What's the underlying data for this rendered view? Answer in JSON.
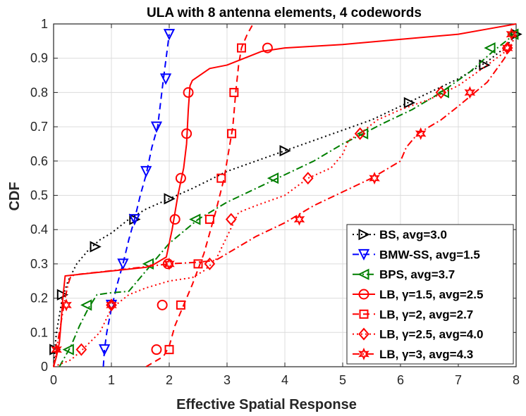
{
  "chart_data": {
    "type": "line",
    "title": "ULA with 8 antenna elements, 4 codewords",
    "xlabel": "Effective Spatial Response",
    "ylabel": "CDF",
    "xlim": [
      0,
      8
    ],
    "ylim": [
      0,
      1
    ],
    "xticks": [
      0,
      1,
      2,
      3,
      4,
      5,
      6,
      7,
      8
    ],
    "xtick_labels": [
      "0",
      "1",
      "2",
      "3",
      "4",
      "5",
      "6",
      "7",
      "8"
    ],
    "yticks": [
      0,
      0.1,
      0.2,
      0.3,
      0.4,
      0.5,
      0.6,
      0.7,
      0.8,
      0.9,
      1
    ],
    "ytick_labels": [
      "0",
      "0.1",
      "0.2",
      "0.3",
      "0.4",
      "0.5",
      "0.6",
      "0.7",
      "0.8",
      "0.9",
      "1"
    ],
    "grid": true,
    "legend_position": "bottom-right",
    "series": [
      {
        "name": "BS, avg=3.0",
        "color": "#000000",
        "dash": "dotted",
        "marker": "triangle-right",
        "x": [
          0,
          0.02,
          0.05,
          0.1,
          0.15,
          0.25,
          0.4,
          0.6,
          0.8,
          1.0,
          1.3,
          1.6,
          2.0,
          2.4,
          3.0,
          3.5,
          4.0,
          4.5,
          5.0,
          5.5,
          6.0,
          6.5,
          7.0,
          7.5,
          7.8,
          8.0
        ],
        "y": [
          0,
          0.05,
          0.1,
          0.15,
          0.2,
          0.25,
          0.3,
          0.34,
          0.37,
          0.39,
          0.43,
          0.46,
          0.49,
          0.52,
          0.57,
          0.6,
          0.63,
          0.66,
          0.69,
          0.72,
          0.76,
          0.8,
          0.84,
          0.89,
          0.93,
          0.97
        ],
        "markers_x": [
          0.02,
          0.15,
          0.72,
          1.4,
          2.0,
          4.0,
          6.15,
          7.45,
          8.0
        ],
        "markers_y": [
          0.05,
          0.21,
          0.35,
          0.43,
          0.49,
          0.63,
          0.77,
          0.88,
          0.97
        ]
      },
      {
        "name": "BMW-SS, avg=1.5",
        "color": "#0000ff",
        "dash": "dashed",
        "marker": "triangle-down",
        "x": [
          0.86,
          0.88,
          0.92,
          1.0,
          1.1,
          1.2,
          1.3,
          1.4,
          1.5,
          1.6,
          1.7,
          1.8,
          1.9,
          2.0
        ],
        "y": [
          0,
          0.05,
          0.1,
          0.17,
          0.24,
          0.3,
          0.37,
          0.43,
          0.5,
          0.56,
          0.64,
          0.7,
          0.84,
          0.97
        ],
        "markers_x": [
          0.88,
          1.0,
          1.2,
          1.4,
          1.6,
          1.78,
          1.94,
          2.0
        ],
        "markers_y": [
          0.05,
          0.18,
          0.3,
          0.43,
          0.57,
          0.7,
          0.84,
          0.97
        ]
      },
      {
        "name": "BPS, avg=3.7",
        "color": "#007f00",
        "dash": "dashdot",
        "marker": "triangle-left",
        "x": [
          0.1,
          0.2,
          0.3,
          0.45,
          0.6,
          0.75,
          0.95,
          1.3,
          1.5,
          1.7,
          2.0,
          2.5,
          3.0,
          3.5,
          4.0,
          4.5,
          5.0,
          5.3,
          5.7,
          6.2,
          6.7,
          7.2,
          7.6,
          7.9,
          8.0
        ],
        "y": [
          0,
          0.03,
          0.06,
          0.12,
          0.17,
          0.21,
          0.215,
          0.22,
          0.26,
          0.3,
          0.36,
          0.43,
          0.48,
          0.52,
          0.56,
          0.6,
          0.65,
          0.675,
          0.71,
          0.75,
          0.8,
          0.86,
          0.92,
          0.96,
          0.98
        ],
        "markers_x": [
          0.26,
          0.57,
          1.64,
          2.45,
          3.8,
          5.35,
          6.75,
          7.55,
          7.95
        ],
        "markers_y": [
          0.05,
          0.18,
          0.3,
          0.43,
          0.55,
          0.68,
          0.8,
          0.93,
          0.97
        ]
      },
      {
        "name": "LB, γ=1.5, avg=2.5",
        "color": "#ff0000",
        "dash": "solid",
        "marker": "circle",
        "x": [
          0.0,
          0.05,
          0.1,
          0.13,
          0.16,
          0.2,
          1.6,
          1.75,
          1.85,
          1.95,
          2.05,
          2.15,
          2.25,
          2.3,
          2.33,
          2.36,
          2.4,
          2.7,
          3.0,
          3.3,
          3.6,
          4.0,
          5.0,
          6.0,
          7.0,
          7.5,
          8.0
        ],
        "y": [
          0,
          0.03,
          0.07,
          0.13,
          0.2,
          0.265,
          0.29,
          0.3,
          0.31,
          0.32,
          0.4,
          0.5,
          0.58,
          0.65,
          0.75,
          0.82,
          0.835,
          0.87,
          0.88,
          0.9,
          0.92,
          0.93,
          0.94,
          0.955,
          0.97,
          0.985,
          1.0
        ],
        "markers_x": [
          1.78,
          1.88,
          1.98,
          2.1,
          2.2,
          2.3,
          2.33,
          3.7
        ],
        "markers_y": [
          0.05,
          0.18,
          0.3,
          0.43,
          0.55,
          0.68,
          0.8,
          0.93
        ],
        "note": "low segment 1.5-1.95 starts at y=0 near x=1.6"
      },
      {
        "name": "LB, γ=2, avg=2.7",
        "color": "#ff0000",
        "dash": "dashed",
        "marker": "square",
        "x": [
          1.6,
          1.9,
          2.0,
          2.1,
          2.25,
          2.4,
          2.6,
          2.8,
          2.95,
          3.05,
          3.1,
          3.15,
          3.2,
          3.25,
          3.35,
          3.45
        ],
        "y": [
          0,
          0.03,
          0.06,
          0.12,
          0.18,
          0.24,
          0.33,
          0.45,
          0.55,
          0.65,
          0.7,
          0.8,
          0.88,
          0.93,
          0.97,
          1.0
        ],
        "markers_x": [
          2.0,
          2.2,
          2.5,
          2.7,
          2.9,
          3.08,
          3.12,
          3.25
        ],
        "markers_y": [
          0.05,
          0.18,
          0.3,
          0.43,
          0.55,
          0.68,
          0.8,
          0.93
        ]
      },
      {
        "name": "LB, γ=2.5, avg=4.0",
        "color": "#ff0000",
        "dash": "dotted",
        "marker": "diamond",
        "x": [
          0.0,
          0.3,
          0.5,
          0.8,
          1.0,
          1.3,
          1.6,
          2.0,
          2.4,
          2.6,
          2.8,
          3.0,
          3.2,
          3.5,
          4.0,
          4.4,
          4.8,
          5.0,
          5.1,
          5.3,
          5.6,
          6.0,
          6.5,
          7.0,
          7.5,
          7.9
        ],
        "y": [
          0,
          0.02,
          0.05,
          0.1,
          0.17,
          0.21,
          0.23,
          0.25,
          0.26,
          0.28,
          0.31,
          0.38,
          0.45,
          0.47,
          0.5,
          0.55,
          0.58,
          0.62,
          0.66,
          0.68,
          0.72,
          0.75,
          0.78,
          0.82,
          0.88,
          0.93
        ],
        "markers_x": [
          0.48,
          1.0,
          2.7,
          3.07,
          4.4,
          5.3,
          6.7,
          7.85
        ],
        "markers_y": [
          0.05,
          0.18,
          0.3,
          0.43,
          0.55,
          0.68,
          0.8,
          0.93
        ]
      },
      {
        "name": "LB, γ=3, avg=4.3",
        "color": "#ff0000",
        "dash": "dashdot",
        "marker": "hexagram",
        "x": [
          0.0,
          0.05,
          0.1,
          0.15,
          0.2,
          0.25,
          0.3,
          0.45,
          1.0,
          2.0,
          2.5,
          2.8,
          3.0,
          3.5,
          4.0,
          4.5,
          5.0,
          5.5,
          5.8,
          6.0,
          6.1,
          6.3,
          6.7,
          7.0,
          7.5,
          7.8,
          8.0
        ],
        "y": [
          0,
          0.05,
          0.1,
          0.15,
          0.2,
          0.24,
          0.265,
          0.27,
          0.28,
          0.3,
          0.305,
          0.31,
          0.33,
          0.38,
          0.42,
          0.47,
          0.51,
          0.55,
          0.58,
          0.6,
          0.64,
          0.68,
          0.72,
          0.76,
          0.83,
          0.9,
          0.97
        ],
        "markers_x": [
          0.05,
          0.22,
          1.0,
          2.0,
          4.25,
          5.55,
          6.35,
          7.2,
          7.85,
          7.92
        ],
        "markers_y": [
          0.05,
          0.18,
          0.18,
          0.3,
          0.43,
          0.55,
          0.68,
          0.8,
          0.93,
          0.97
        ]
      }
    ]
  }
}
